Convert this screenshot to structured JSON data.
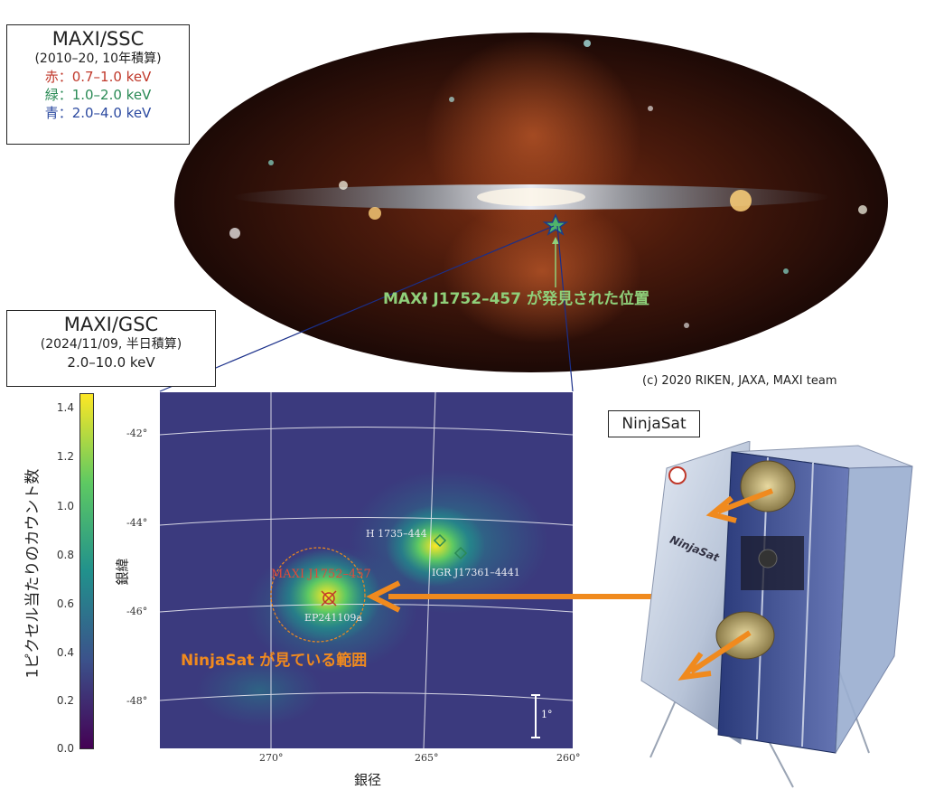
{
  "ssc_box": {
    "title": "MAXI/SSC",
    "period": "(2010–20, 10年積算)",
    "bands": [
      {
        "text": "赤：0.7–1.0 keV",
        "color": "#c0392b"
      },
      {
        "text": "緑：1.0–2.0 keV",
        "color": "#2a8a55"
      },
      {
        "text": "青：2.0–4.0 keV",
        "color": "#2c4aa0"
      }
    ]
  },
  "allsky": {
    "discovery_label": "MAXI J1752–457 が発見された位置",
    "credit": "(c) 2020 RIKEN, JAXA, MAXI team",
    "label_color": "#8fd07a"
  },
  "gsc_box": {
    "title": "MAXI/GSC",
    "period": "(2024/11/09, 半日積算)",
    "band": "2.0–10.0 keV"
  },
  "colorbar": {
    "label": "1ピクセル当たりのカウント数",
    "ticks": [
      "1.4",
      "1.2",
      "1.0",
      "0.8",
      "0.6",
      "0.4",
      "0.2",
      "0.0"
    ]
  },
  "map": {
    "ylabel": "銀緯",
    "xlabel": "銀径",
    "lat_ticks": [
      "-42°",
      "-44°",
      "-46°",
      "-48°"
    ],
    "lon_ticks": [
      "270°",
      "265°",
      "260°"
    ],
    "sources": {
      "target": "MAXI J1752–457",
      "h1735": "H 1735–444",
      "igr": "IGR J17361–4441",
      "ep": "EP241109a"
    },
    "fov_label": "NinjaSat が見ている範囲",
    "scale_label": "1°",
    "fov_color": "#f08a1e"
  },
  "ninjasat": {
    "label": "NinjaSat",
    "body_text": "NinjaSat"
  }
}
